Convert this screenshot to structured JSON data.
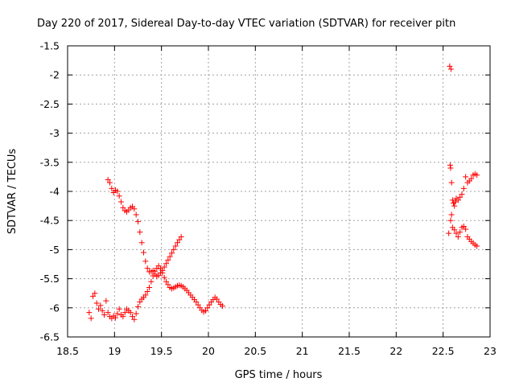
{
  "chart_data": {
    "type": "scatter",
    "title": "Day 220 of 2017, Sidereal Day-to-day VTEC variation (SDTVAR) for receiver pitn",
    "xlabel": "GPS time / hours",
    "ylabel": "SDTVAR / TECUs",
    "xlim": [
      18.5,
      23
    ],
    "ylim": [
      -6.5,
      -1.5
    ],
    "x_ticks": [
      "18.5",
      "19",
      "19.5",
      "20",
      "20.5",
      "21",
      "21.5",
      "22",
      "22.5",
      "23"
    ],
    "y_ticks": [
      "-1.5",
      "-2",
      "-2.5",
      "-3",
      "-3.5",
      "-4",
      "-4.5",
      "-5",
      "-5.5",
      "-6",
      "-6.5"
    ],
    "grid": true,
    "marker": "+",
    "color": "#ff0000",
    "series": [
      {
        "points": [
          [
            18.73,
            -6.08
          ],
          [
            18.75,
            -6.18
          ],
          [
            18.77,
            -5.8
          ],
          [
            18.79,
            -5.75
          ],
          [
            18.81,
            -5.92
          ],
          [
            18.83,
            -6.02
          ],
          [
            18.85,
            -5.96
          ],
          [
            18.87,
            -6.05
          ],
          [
            18.89,
            -6.12
          ],
          [
            18.91,
            -5.88
          ],
          [
            18.93,
            -6.08
          ],
          [
            18.95,
            -6.15
          ],
          [
            18.97,
            -6.18
          ],
          [
            18.99,
            -6.14
          ],
          [
            19.01,
            -6.17
          ],
          [
            19.03,
            -6.1
          ],
          [
            19.05,
            -6.02
          ],
          [
            19.07,
            -6.12
          ],
          [
            19.09,
            -6.15
          ],
          [
            19.11,
            -6.08
          ],
          [
            19.13,
            -6.02
          ],
          [
            19.15,
            -6.05
          ],
          [
            19.17,
            -6.08
          ],
          [
            19.19,
            -6.15
          ],
          [
            19.21,
            -6.2
          ],
          [
            19.23,
            -6.1
          ],
          [
            19.25,
            -5.98
          ],
          [
            19.27,
            -5.9
          ],
          [
            19.29,
            -5.85
          ],
          [
            19.31,
            -5.82
          ],
          [
            19.33,
            -5.78
          ],
          [
            19.35,
            -5.72
          ],
          [
            19.37,
            -5.65
          ],
          [
            19.39,
            -5.55
          ],
          [
            19.41,
            -5.45
          ],
          [
            19.43,
            -5.38
          ],
          [
            19.45,
            -5.32
          ],
          [
            19.47,
            -5.28
          ],
          [
            19.49,
            -5.33
          ],
          [
            19.51,
            -5.4
          ],
          [
            19.53,
            -5.48
          ],
          [
            19.55,
            -5.55
          ],
          [
            19.57,
            -5.6
          ],
          [
            19.59,
            -5.65
          ],
          [
            19.61,
            -5.67
          ],
          [
            19.63,
            -5.66
          ],
          [
            19.65,
            -5.64
          ],
          [
            19.67,
            -5.62
          ],
          [
            19.69,
            -5.61
          ],
          [
            19.71,
            -5.62
          ],
          [
            19.73,
            -5.64
          ],
          [
            19.75,
            -5.67
          ],
          [
            19.77,
            -5.7
          ],
          [
            19.79,
            -5.74
          ],
          [
            19.81,
            -5.78
          ],
          [
            19.83,
            -5.82
          ],
          [
            19.85,
            -5.86
          ],
          [
            19.87,
            -5.9
          ],
          [
            19.89,
            -5.95
          ],
          [
            19.91,
            -6.0
          ],
          [
            19.93,
            -6.04
          ],
          [
            19.95,
            -6.07
          ],
          [
            19.97,
            -6.05
          ],
          [
            19.99,
            -6.0
          ],
          [
            20.01,
            -5.95
          ],
          [
            20.03,
            -5.9
          ],
          [
            20.05,
            -5.86
          ],
          [
            20.07,
            -5.82
          ],
          [
            20.09,
            -5.85
          ],
          [
            20.11,
            -5.9
          ],
          [
            20.13,
            -5.94
          ],
          [
            20.15,
            -5.97
          ]
        ]
      },
      {
        "points": [
          [
            18.93,
            -3.8
          ],
          [
            18.95,
            -3.85
          ],
          [
            18.97,
            -3.95
          ],
          [
            18.99,
            -4.02
          ],
          [
            19.01,
            -3.98
          ],
          [
            19.03,
            -4.0
          ],
          [
            19.05,
            -4.08
          ],
          [
            19.07,
            -4.18
          ],
          [
            19.09,
            -4.28
          ],
          [
            19.11,
            -4.33
          ],
          [
            19.13,
            -4.35
          ],
          [
            19.15,
            -4.32
          ],
          [
            19.17,
            -4.28
          ],
          [
            19.19,
            -4.26
          ],
          [
            19.21,
            -4.3
          ],
          [
            19.23,
            -4.4
          ],
          [
            19.25,
            -4.52
          ],
          [
            19.27,
            -4.7
          ],
          [
            19.29,
            -4.88
          ],
          [
            19.31,
            -5.05
          ],
          [
            19.33,
            -5.2
          ],
          [
            19.35,
            -5.32
          ],
          [
            19.37,
            -5.38
          ],
          [
            19.39,
            -5.38
          ],
          [
            19.41,
            -5.36
          ],
          [
            19.43,
            -5.42
          ],
          [
            19.45,
            -5.46
          ],
          [
            19.47,
            -5.44
          ],
          [
            19.49,
            -5.4
          ],
          [
            19.51,
            -5.36
          ],
          [
            19.53,
            -5.3
          ],
          [
            19.55,
            -5.24
          ],
          [
            19.57,
            -5.18
          ],
          [
            19.59,
            -5.12
          ],
          [
            19.61,
            -5.06
          ],
          [
            19.63,
            -5.0
          ],
          [
            19.65,
            -4.94
          ],
          [
            19.67,
            -4.88
          ],
          [
            19.69,
            -4.83
          ],
          [
            19.71,
            -4.78
          ]
        ]
      },
      {
        "points": [
          [
            22.57,
            -1.85
          ],
          [
            22.585,
            -1.9
          ],
          [
            22.575,
            -3.55
          ],
          [
            22.58,
            -3.6
          ],
          [
            22.59,
            -3.85
          ],
          [
            22.56,
            -4.72
          ],
          [
            22.58,
            -4.5
          ],
          [
            22.59,
            -4.4
          ],
          [
            22.6,
            -4.15
          ],
          [
            22.61,
            -4.2
          ],
          [
            22.62,
            -4.25
          ],
          [
            22.63,
            -4.18
          ],
          [
            22.64,
            -4.12
          ],
          [
            22.66,
            -4.15
          ],
          [
            22.68,
            -4.1
          ],
          [
            22.7,
            -4.05
          ],
          [
            22.72,
            -3.95
          ],
          [
            22.74,
            -3.75
          ],
          [
            22.76,
            -3.85
          ],
          [
            22.78,
            -3.82
          ],
          [
            22.8,
            -3.78
          ],
          [
            22.82,
            -3.72
          ],
          [
            22.84,
            -3.7
          ],
          [
            22.86,
            -3.72
          ],
          [
            22.6,
            -4.62
          ],
          [
            22.62,
            -4.66
          ],
          [
            22.64,
            -4.72
          ],
          [
            22.66,
            -4.78
          ],
          [
            22.68,
            -4.7
          ],
          [
            22.7,
            -4.62
          ],
          [
            22.72,
            -4.6
          ],
          [
            22.74,
            -4.65
          ],
          [
            22.76,
            -4.78
          ],
          [
            22.78,
            -4.82
          ],
          [
            22.8,
            -4.86
          ],
          [
            22.82,
            -4.89
          ],
          [
            22.84,
            -4.92
          ],
          [
            22.86,
            -4.94
          ]
        ]
      }
    ]
  }
}
